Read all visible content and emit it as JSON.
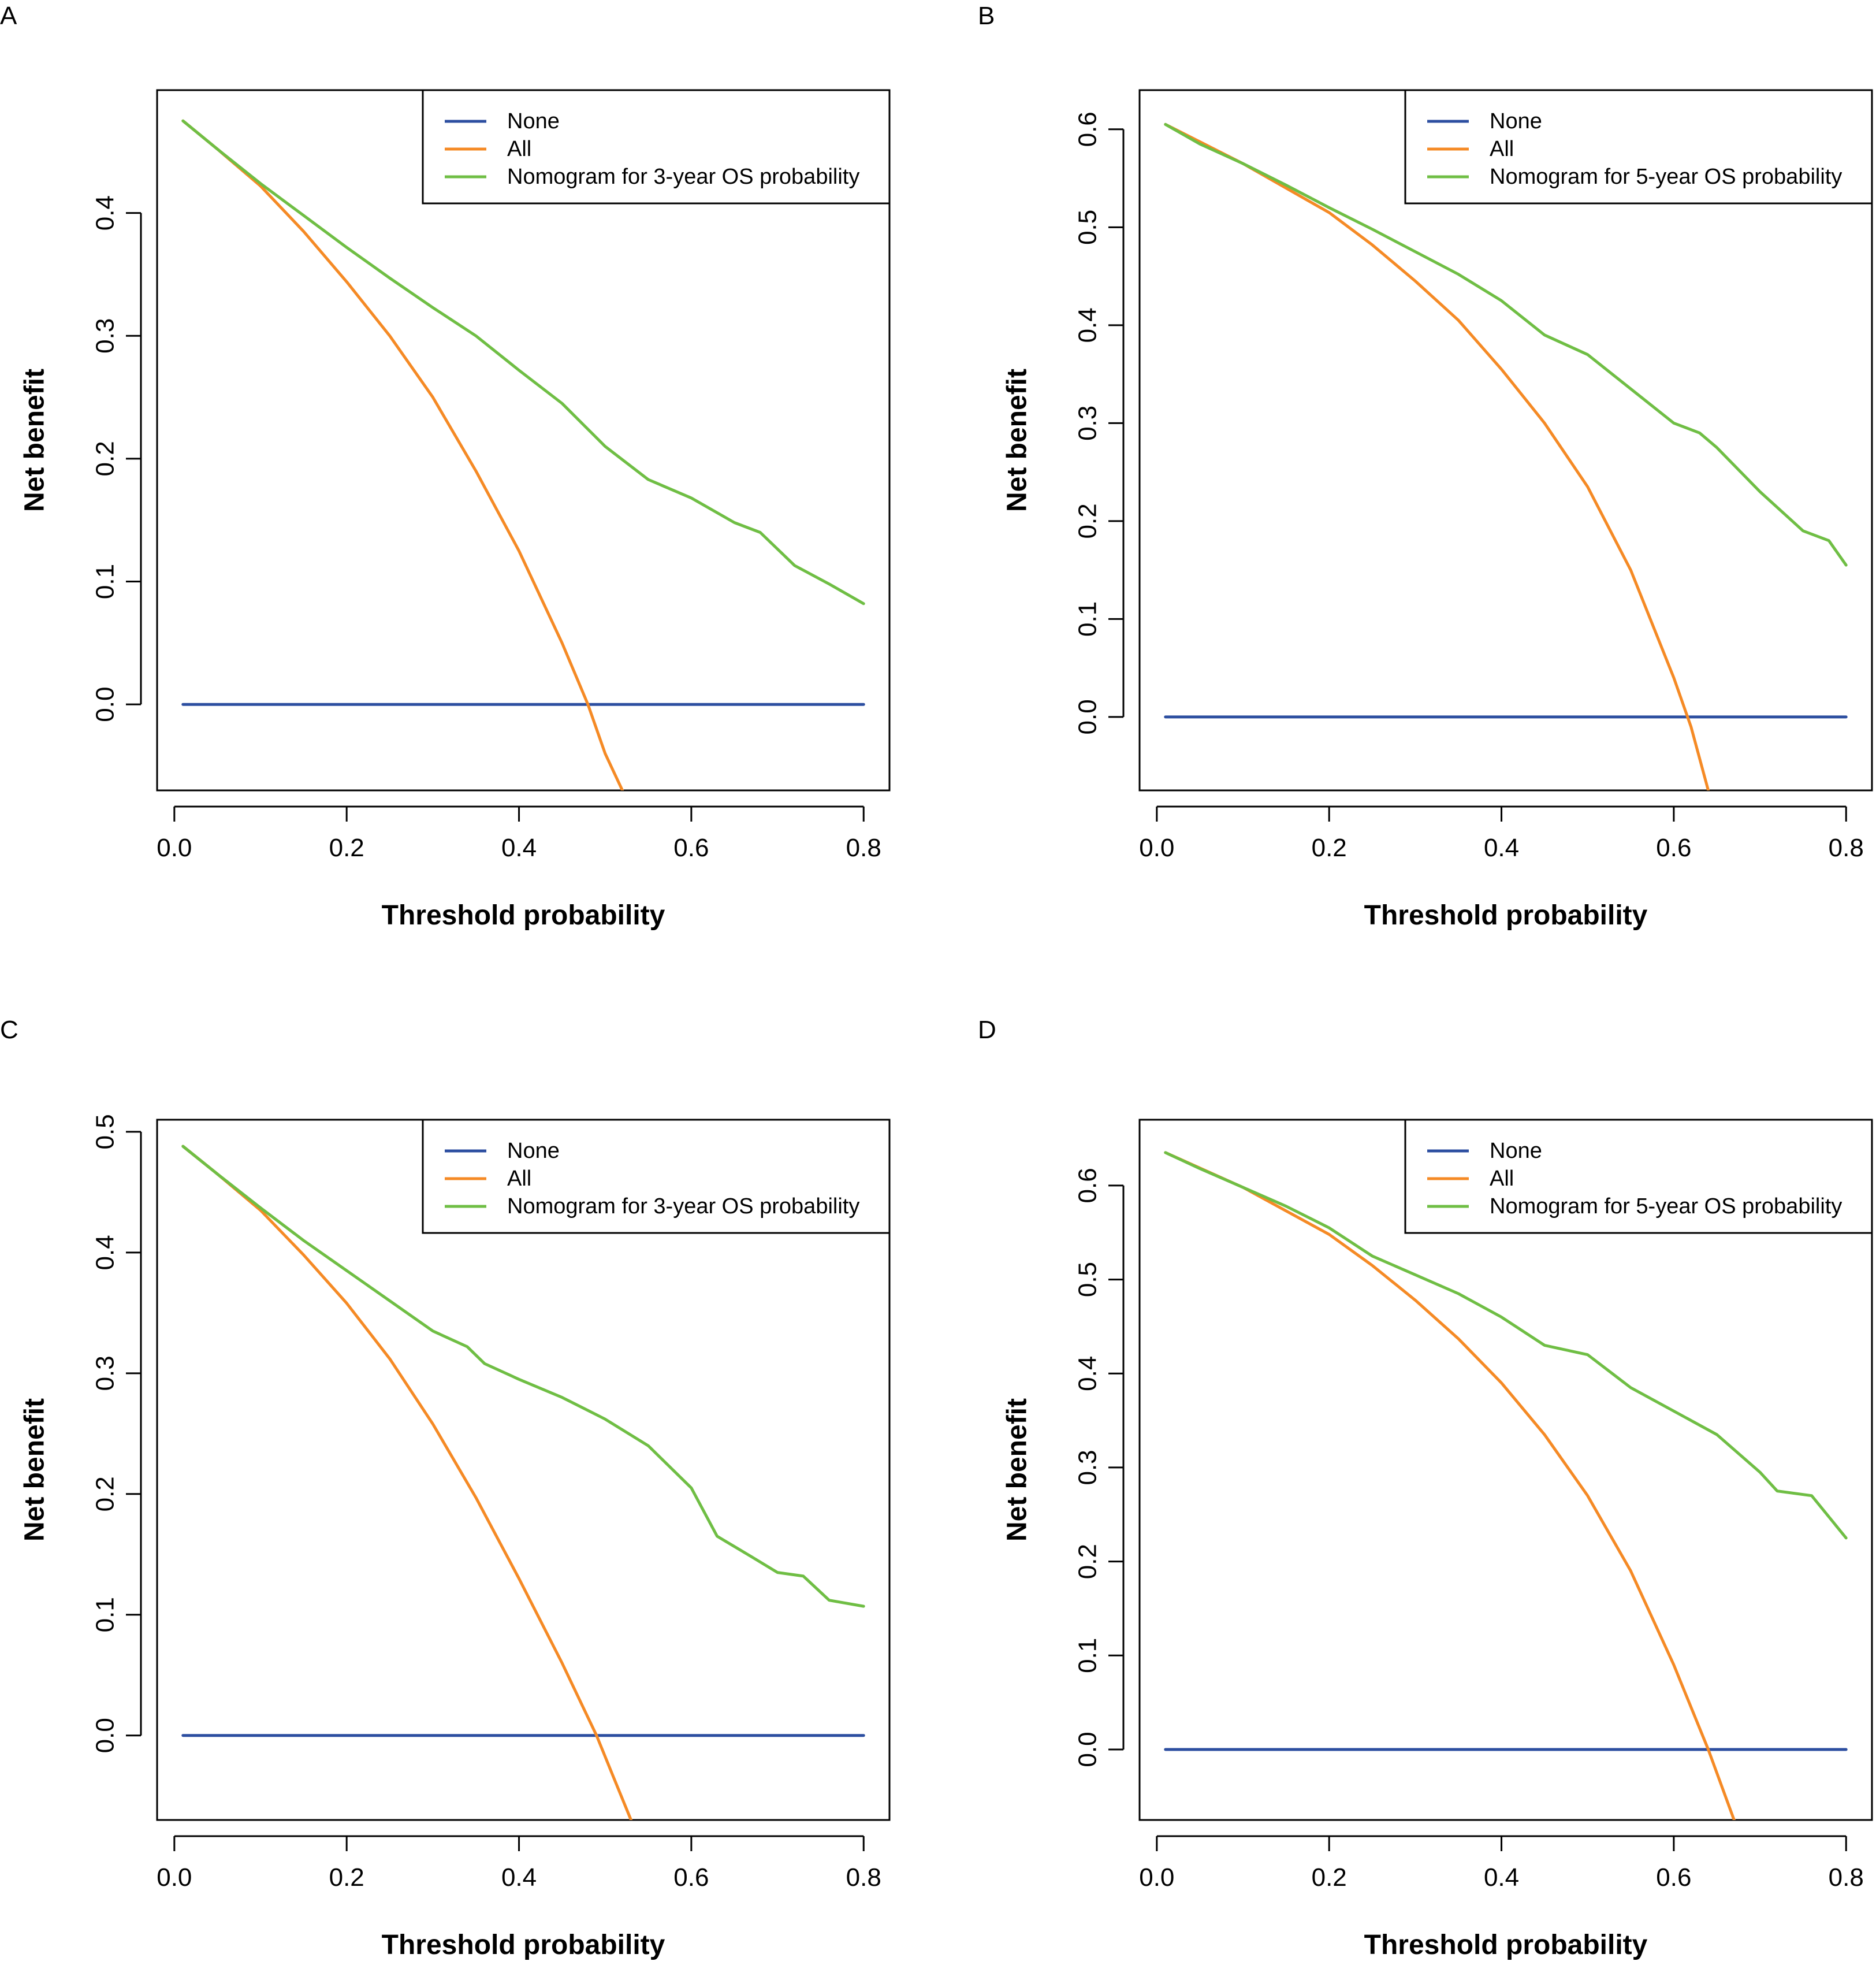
{
  "figure_type": "decision curve analysis",
  "colors": {
    "None": "#2c4ea0",
    "All": "#f58a25",
    "Model": "#6fbe44"
  },
  "chart_data": [
    {
      "panel": "A",
      "type": "line",
      "xlabel": "Threshold probability",
      "ylabel": "Net benefit",
      "xlim": [
        -0.02,
        0.83
      ],
      "ylim": [
        -0.07,
        0.5
      ],
      "xticks": [
        0.0,
        0.2,
        0.4,
        0.6,
        0.8
      ],
      "xtick_labels": [
        "0.0",
        "0.2",
        "0.4",
        "0.6",
        "0.8"
      ],
      "yticks": [
        0.0,
        0.1,
        0.2,
        0.3,
        0.4
      ],
      "ytick_labels": [
        "0.0",
        "0.1",
        "0.2",
        "0.3",
        "0.4"
      ],
      "legend": [
        "None",
        "All",
        "Nomogram for 3-year OS probability"
      ],
      "legend_position": "top-right",
      "series": [
        {
          "name": "None",
          "color_key": "None",
          "x": [
            0.01,
            0.8
          ],
          "y": [
            0.0,
            0.0
          ]
        },
        {
          "name": "All",
          "color_key": "All",
          "x": [
            0.01,
            0.05,
            0.1,
            0.15,
            0.2,
            0.25,
            0.3,
            0.35,
            0.4,
            0.45,
            0.48,
            0.5,
            0.52
          ],
          "y": [
            0.475,
            0.452,
            0.422,
            0.385,
            0.344,
            0.3,
            0.25,
            0.19,
            0.125,
            0.05,
            0.0,
            -0.04,
            -0.07
          ]
        },
        {
          "name": "Nomogram for 3-year OS probability",
          "color_key": "Model",
          "x": [
            0.01,
            0.05,
            0.1,
            0.15,
            0.2,
            0.25,
            0.3,
            0.35,
            0.4,
            0.45,
            0.5,
            0.55,
            0.6,
            0.65,
            0.68,
            0.72,
            0.76,
            0.8
          ],
          "y": [
            0.475,
            0.452,
            0.424,
            0.398,
            0.372,
            0.347,
            0.323,
            0.3,
            0.272,
            0.245,
            0.21,
            0.183,
            0.168,
            0.148,
            0.14,
            0.113,
            0.098,
            0.082
          ]
        }
      ]
    },
    {
      "panel": "B",
      "type": "line",
      "xlabel": "Threshold probability",
      "ylabel": "Net benefit",
      "xlim": [
        -0.02,
        0.83
      ],
      "ylim": [
        -0.075,
        0.64
      ],
      "xticks": [
        0.0,
        0.2,
        0.4,
        0.6,
        0.8
      ],
      "xtick_labels": [
        "0.0",
        "0.2",
        "0.4",
        "0.6",
        "0.8"
      ],
      "yticks": [
        0.0,
        0.1,
        0.2,
        0.3,
        0.4,
        0.5,
        0.6
      ],
      "ytick_labels": [
        "0.0",
        "0.1",
        "0.2",
        "0.3",
        "0.4",
        "0.5",
        "0.6"
      ],
      "legend": [
        "None",
        "All",
        "Nomogram for 5-year OS probability"
      ],
      "legend_position": "top-right",
      "series": [
        {
          "name": "None",
          "color_key": "None",
          "x": [
            0.01,
            0.8
          ],
          "y": [
            0.0,
            0.0
          ]
        },
        {
          "name": "All",
          "color_key": "All",
          "x": [
            0.01,
            0.1,
            0.2,
            0.25,
            0.3,
            0.35,
            0.4,
            0.45,
            0.5,
            0.55,
            0.6,
            0.62,
            0.64
          ],
          "y": [
            0.605,
            0.565,
            0.515,
            0.482,
            0.445,
            0.405,
            0.355,
            0.3,
            0.235,
            0.15,
            0.04,
            -0.01,
            -0.075
          ]
        },
        {
          "name": "Nomogram for 5-year OS probability",
          "color_key": "Model",
          "x": [
            0.01,
            0.05,
            0.1,
            0.15,
            0.2,
            0.25,
            0.3,
            0.35,
            0.4,
            0.45,
            0.5,
            0.55,
            0.6,
            0.63,
            0.65,
            0.7,
            0.75,
            0.78,
            0.8
          ],
          "y": [
            0.605,
            0.585,
            0.565,
            0.543,
            0.52,
            0.498,
            0.475,
            0.452,
            0.425,
            0.39,
            0.37,
            0.335,
            0.3,
            0.29,
            0.275,
            0.23,
            0.19,
            0.18,
            0.155
          ]
        }
      ]
    },
    {
      "panel": "C",
      "type": "line",
      "xlabel": "Threshold probability",
      "ylabel": "Net benefit",
      "xlim": [
        -0.02,
        0.83
      ],
      "ylim": [
        -0.07,
        0.51
      ],
      "xticks": [
        0.0,
        0.2,
        0.4,
        0.6,
        0.8
      ],
      "xtick_labels": [
        "0.0",
        "0.2",
        "0.4",
        "0.6",
        "0.8"
      ],
      "yticks": [
        0.0,
        0.1,
        0.2,
        0.3,
        0.4,
        0.5
      ],
      "ytick_labels": [
        "0.0",
        "0.1",
        "0.2",
        "0.3",
        "0.4",
        "0.5"
      ],
      "legend": [
        "None",
        "All",
        "Nomogram for 3-year OS probability"
      ],
      "legend_position": "top-right",
      "series": [
        {
          "name": "None",
          "color_key": "None",
          "x": [
            0.01,
            0.8
          ],
          "y": [
            0.0,
            0.0
          ]
        },
        {
          "name": "All",
          "color_key": "All",
          "x": [
            0.01,
            0.05,
            0.1,
            0.15,
            0.2,
            0.25,
            0.3,
            0.35,
            0.4,
            0.45,
            0.49,
            0.51,
            0.53
          ],
          "y": [
            0.488,
            0.465,
            0.435,
            0.398,
            0.358,
            0.312,
            0.258,
            0.197,
            0.13,
            0.06,
            0.0,
            -0.035,
            -0.07
          ]
        },
        {
          "name": "Nomogram for 3-year OS probability",
          "color_key": "Model",
          "x": [
            0.01,
            0.05,
            0.1,
            0.15,
            0.2,
            0.25,
            0.3,
            0.34,
            0.36,
            0.4,
            0.45,
            0.5,
            0.55,
            0.6,
            0.63,
            0.67,
            0.7,
            0.73,
            0.76,
            0.8
          ],
          "y": [
            0.488,
            0.465,
            0.437,
            0.41,
            0.385,
            0.36,
            0.335,
            0.322,
            0.308,
            0.295,
            0.28,
            0.262,
            0.24,
            0.205,
            0.165,
            0.148,
            0.135,
            0.132,
            0.112,
            0.107
          ]
        }
      ]
    },
    {
      "panel": "D",
      "type": "line",
      "xlabel": "Threshold probability",
      "ylabel": "Net benefit",
      "xlim": [
        -0.02,
        0.83
      ],
      "ylim": [
        -0.075,
        0.67
      ],
      "xticks": [
        0.0,
        0.2,
        0.4,
        0.6,
        0.8
      ],
      "xtick_labels": [
        "0.0",
        "0.2",
        "0.4",
        "0.6",
        "0.8"
      ],
      "yticks": [
        0.0,
        0.1,
        0.2,
        0.3,
        0.4,
        0.5,
        0.6
      ],
      "ytick_labels": [
        "0.0",
        "0.1",
        "0.2",
        "0.3",
        "0.4",
        "0.5",
        "0.6"
      ],
      "legend": [
        "None",
        "All",
        "Nomogram for 5-year OS probability"
      ],
      "legend_position": "top-right",
      "series": [
        {
          "name": "None",
          "color_key": "None",
          "x": [
            0.01,
            0.8
          ],
          "y": [
            0.0,
            0.0
          ]
        },
        {
          "name": "All",
          "color_key": "All",
          "x": [
            0.01,
            0.1,
            0.2,
            0.25,
            0.3,
            0.35,
            0.4,
            0.45,
            0.5,
            0.55,
            0.6,
            0.64,
            0.67
          ],
          "y": [
            0.635,
            0.598,
            0.548,
            0.515,
            0.478,
            0.437,
            0.39,
            0.335,
            0.27,
            0.19,
            0.09,
            0.0,
            -0.075
          ]
        },
        {
          "name": "Nomogram for 5-year OS probability",
          "color_key": "Model",
          "x": [
            0.01,
            0.05,
            0.1,
            0.15,
            0.2,
            0.25,
            0.3,
            0.35,
            0.4,
            0.45,
            0.5,
            0.55,
            0.6,
            0.65,
            0.7,
            0.72,
            0.76,
            0.8
          ],
          "y": [
            0.635,
            0.618,
            0.598,
            0.578,
            0.555,
            0.525,
            0.505,
            0.485,
            0.46,
            0.43,
            0.42,
            0.385,
            0.36,
            0.335,
            0.295,
            0.275,
            0.27,
            0.225
          ]
        }
      ]
    }
  ]
}
